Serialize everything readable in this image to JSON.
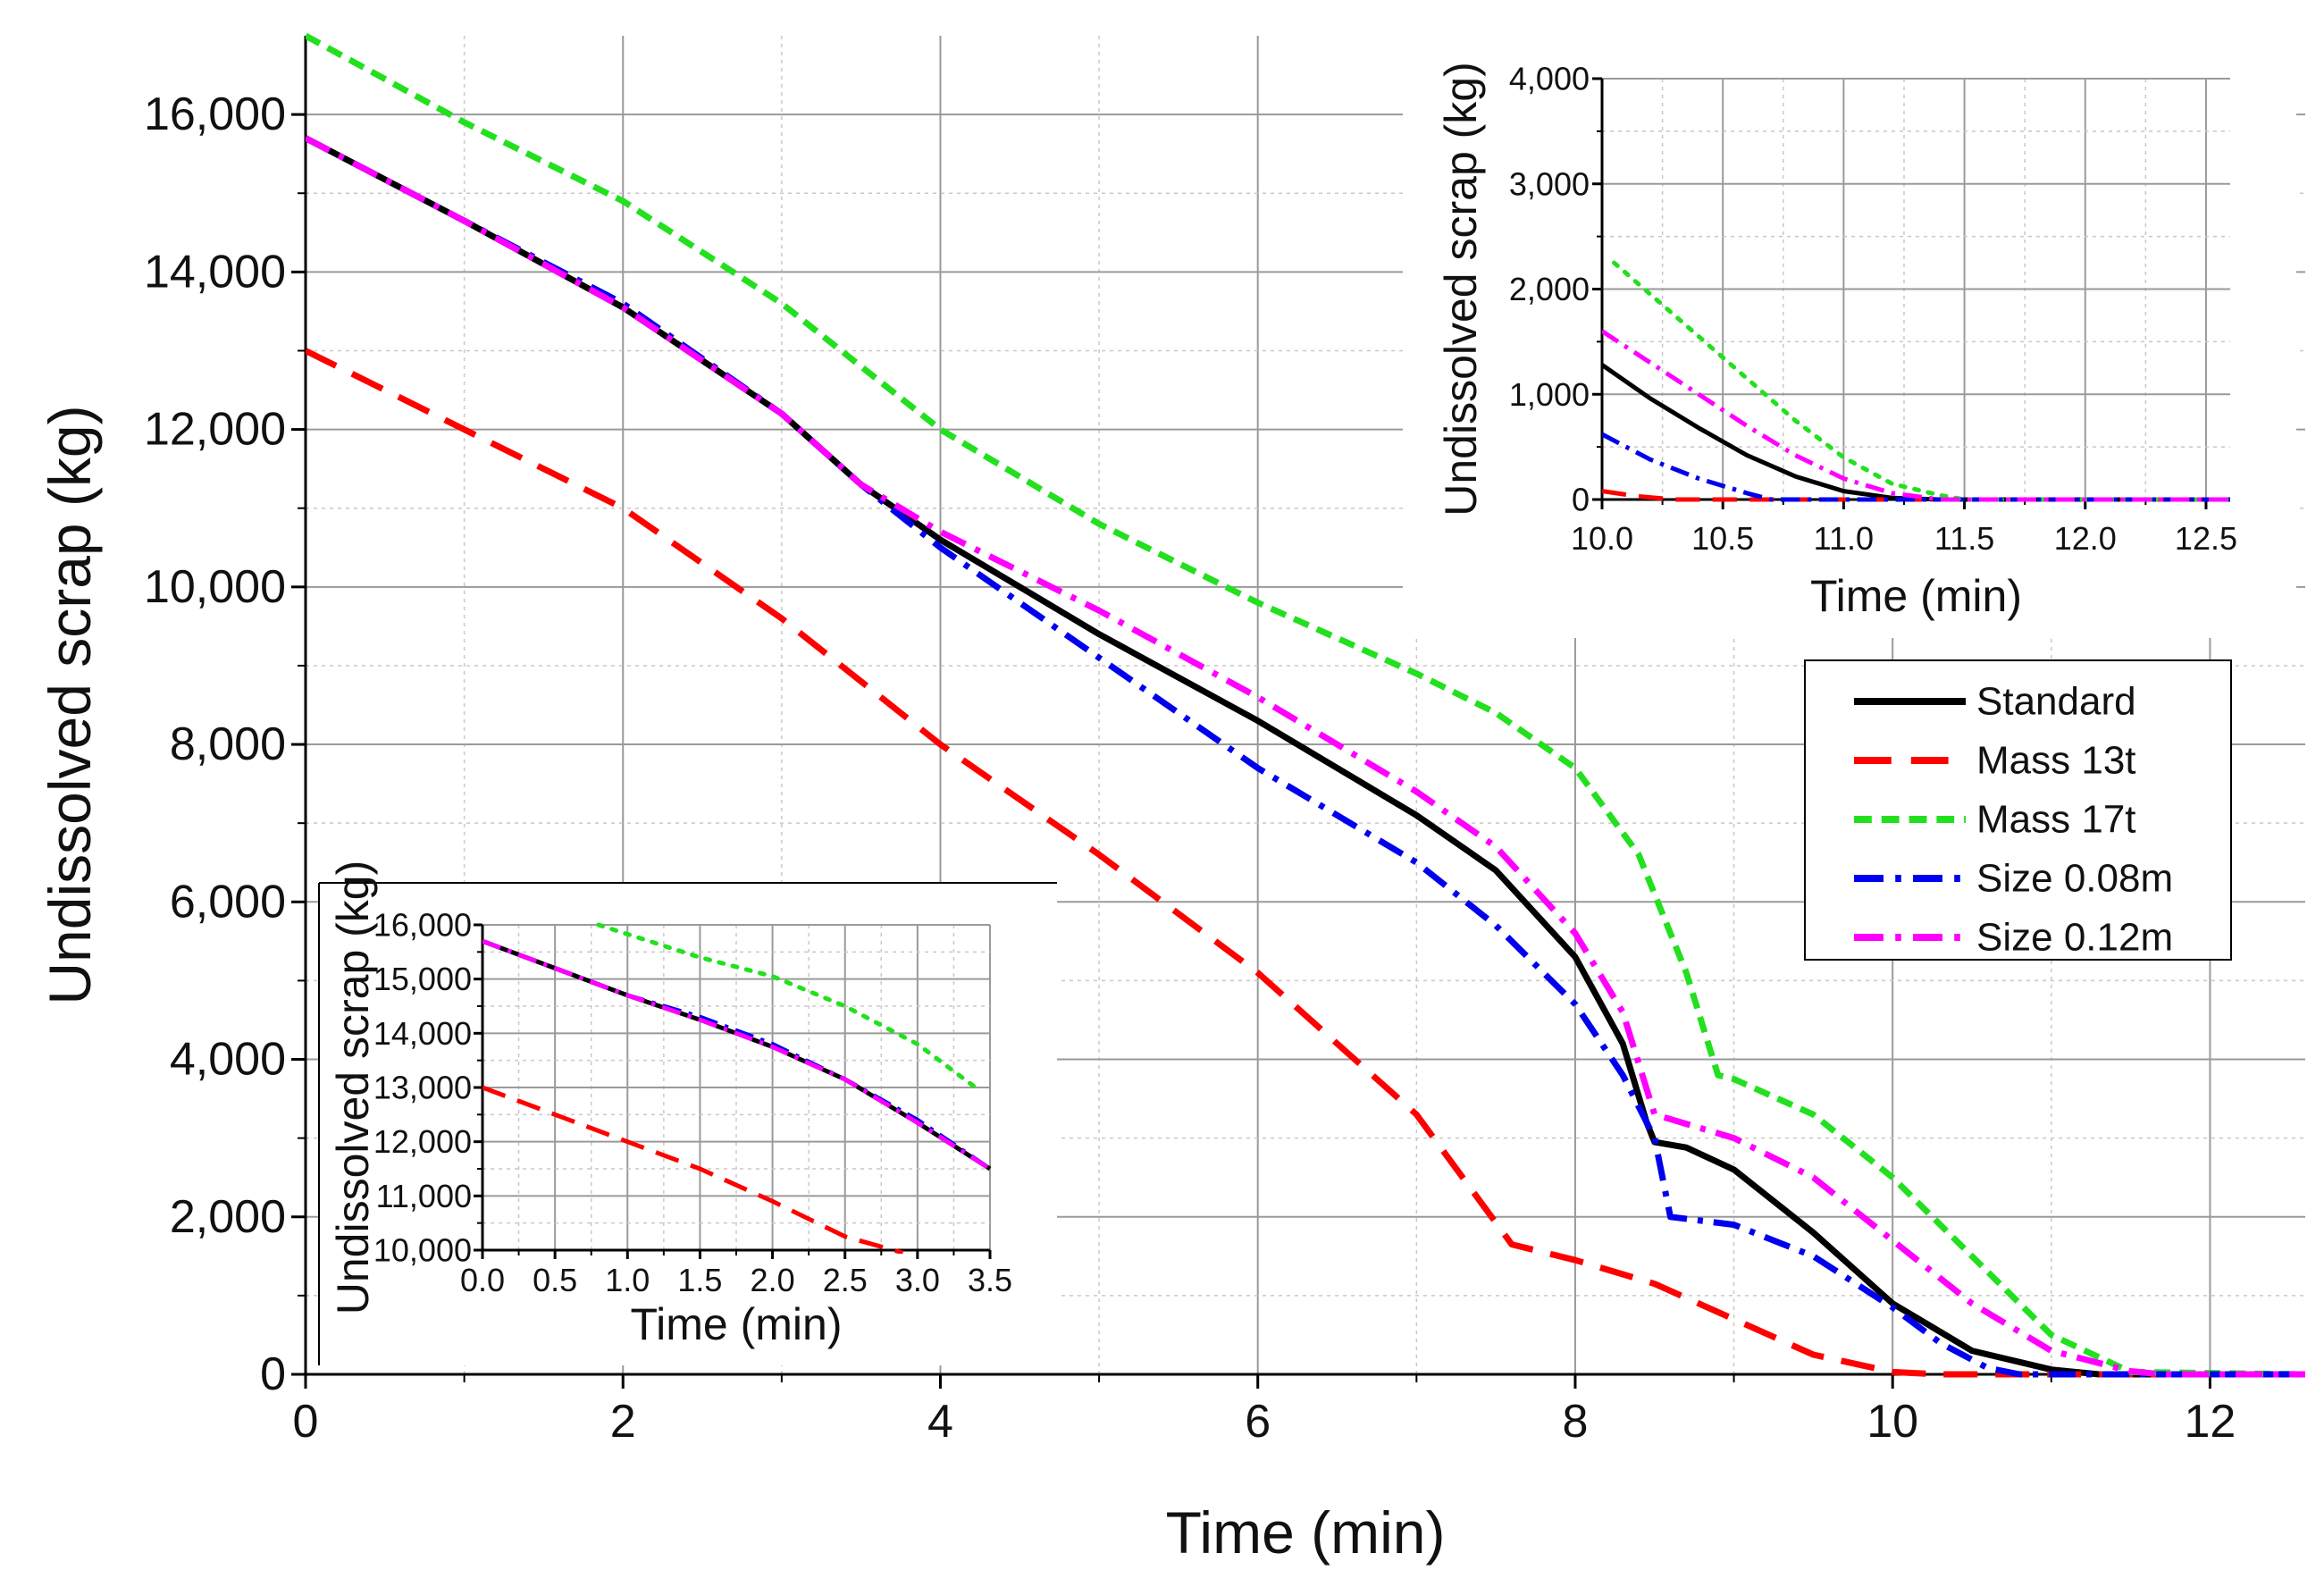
{
  "chart_data": [
    {
      "id": "main",
      "type": "line",
      "xlabel": "Time (min)",
      "ylabel": "Undissolved scrap (kg)",
      "xlim": [
        0,
        12.6
      ],
      "ylim": [
        0,
        17000
      ],
      "xticks": [
        0,
        2,
        4,
        6,
        8,
        10,
        12
      ],
      "xtick_labels": [
        "0",
        "2",
        "4",
        "6",
        "8",
        "10",
        "12"
      ],
      "yticks": [
        0,
        2000,
        4000,
        6000,
        8000,
        10000,
        12000,
        14000,
        16000
      ],
      "ytick_labels": [
        "0",
        "2,000",
        "4,000",
        "6,000",
        "8,000",
        "10,000",
        "12,000",
        "14,000",
        "16,000"
      ],
      "grid": true,
      "legend_position": "right",
      "series": [
        {
          "name": "Standard",
          "color": "#000000",
          "dash": "solid",
          "x": [
            0,
            1,
            2,
            3,
            3.5,
            4,
            5,
            6,
            7,
            7.5,
            8,
            8.3,
            8.45,
            8.5,
            8.7,
            9,
            9.5,
            10,
            10.5,
            11,
            11.3,
            12.6
          ],
          "y": [
            15700,
            14650,
            13550,
            12200,
            11300,
            10600,
            9400,
            8300,
            7100,
            6400,
            5300,
            4200,
            3200,
            2950,
            2880,
            2600,
            1800,
            900,
            300,
            60,
            0,
            0
          ]
        },
        {
          "name": "Mass 13t",
          "color": "#ff0000",
          "dash": "long-dash",
          "x": [
            0,
            1,
            2,
            3,
            4,
            5,
            6,
            7,
            7.6,
            8,
            8.5,
            9,
            9.5,
            10,
            10.3,
            12.6
          ],
          "y": [
            13000,
            12000,
            11000,
            9600,
            8000,
            6600,
            5100,
            3300,
            1650,
            1450,
            1150,
            700,
            250,
            30,
            0,
            0
          ]
        },
        {
          "name": "Mass 17t",
          "color": "#22e01e",
          "dash": "short-dash",
          "x": [
            0,
            1,
            2,
            3,
            4,
            5,
            6,
            7,
            7.5,
            8,
            8.4,
            8.7,
            8.9,
            9,
            9.5,
            10,
            10.5,
            11,
            11.5,
            12.6
          ],
          "y": [
            17000,
            15900,
            14900,
            13600,
            12000,
            10800,
            9800,
            8900,
            8400,
            7700,
            6600,
            5100,
            3800,
            3750,
            3300,
            2500,
            1500,
            500,
            30,
            0
          ]
        },
        {
          "name": "Size 0.08m",
          "color": "#0000ee",
          "dash": "dash-dot",
          "x": [
            0,
            1,
            2,
            3,
            3.5,
            4,
            5,
            6,
            7,
            7.5,
            8,
            8.3,
            8.5,
            8.6,
            9,
            9.5,
            10,
            10.3,
            10.6,
            10.8,
            12.6
          ],
          "y": [
            15700,
            14650,
            13600,
            12200,
            11300,
            10500,
            9100,
            7700,
            6500,
            5700,
            4700,
            3800,
            3000,
            2000,
            1900,
            1500,
            850,
            400,
            80,
            0,
            0
          ]
        },
        {
          "name": "Size 0.12m",
          "color": "#ff00ff",
          "dash": "dash-dot",
          "x": [
            0,
            1,
            2,
            3,
            3.5,
            4,
            5,
            6,
            7,
            7.5,
            8,
            8.3,
            8.5,
            9,
            9.5,
            10,
            10.5,
            11,
            11.5,
            11.7,
            12.6
          ],
          "y": [
            15700,
            14650,
            13550,
            12200,
            11300,
            10700,
            9700,
            8600,
            7400,
            6700,
            5600,
            4600,
            3300,
            3000,
            2500,
            1700,
            900,
            300,
            40,
            0,
            0
          ]
        }
      ]
    },
    {
      "id": "inset-top-right",
      "type": "line",
      "xlabel": "Time (min)",
      "ylabel": "Undissolved scrap (kg)",
      "xlim": [
        10.0,
        12.6
      ],
      "ylim": [
        0,
        4000
      ],
      "xticks": [
        10.0,
        10.5,
        11.0,
        11.5,
        12.0,
        12.5
      ],
      "xtick_labels": [
        "10.0",
        "10.5",
        "11.0",
        "11.5",
        "12.0",
        "12.5"
      ],
      "yticks": [
        0,
        1000,
        2000,
        3000,
        4000
      ],
      "ytick_labels": [
        "0",
        "1,000",
        "2,000",
        "3,000",
        "4,000"
      ],
      "grid": true,
      "series": [
        {
          "name": "Standard",
          "color": "#000000",
          "dash": "solid",
          "x": [
            10.0,
            10.2,
            10.4,
            10.6,
            10.8,
            11.0,
            11.2,
            11.4,
            12.6
          ],
          "y": [
            1280,
            960,
            680,
            420,
            220,
            80,
            15,
            0,
            0
          ]
        },
        {
          "name": "Mass 13t",
          "color": "#ff0000",
          "dash": "long-dash",
          "x": [
            10.0,
            10.15,
            10.3,
            12.6
          ],
          "y": [
            80,
            30,
            0,
            0
          ]
        },
        {
          "name": "Mass 17t",
          "color": "#22e01e",
          "dash": "dotted",
          "x": [
            10.05,
            10.2,
            10.4,
            10.6,
            10.8,
            11.0,
            11.2,
            11.4,
            11.5,
            12.6
          ],
          "y": [
            2250,
            1950,
            1550,
            1150,
            750,
            400,
            150,
            40,
            0,
            0
          ]
        },
        {
          "name": "Size 0.08m",
          "color": "#0000ee",
          "dash": "dash-dot",
          "x": [
            10.0,
            10.2,
            10.4,
            10.6,
            10.7,
            12.6
          ],
          "y": [
            620,
            380,
            200,
            60,
            0,
            0
          ]
        },
        {
          "name": "Size 0.12m",
          "color": "#ff00ff",
          "dash": "dash-dot",
          "x": [
            10.0,
            10.2,
            10.4,
            10.6,
            10.8,
            11.0,
            11.2,
            11.4,
            12.6
          ],
          "y": [
            1600,
            1300,
            1000,
            700,
            420,
            200,
            60,
            0,
            0
          ]
        }
      ]
    },
    {
      "id": "inset-bottom-left",
      "type": "line",
      "xlabel": "Time (min)",
      "ylabel": "Undissolved scrap (kg)",
      "xlim": [
        0,
        3.5
      ],
      "ylim": [
        10000,
        16000
      ],
      "xticks": [
        0.0,
        0.5,
        1.0,
        1.5,
        2.0,
        2.5,
        3.0,
        3.5
      ],
      "xtick_labels": [
        "0.0",
        "0.5",
        "1.0",
        "1.5",
        "2.0",
        "2.5",
        "3.0",
        "3.5"
      ],
      "yticks": [
        10000,
        11000,
        12000,
        13000,
        14000,
        15000,
        16000
      ],
      "ytick_labels": [
        "10,000",
        "11,000",
        "12,000",
        "13,000",
        "14,000",
        "15,000",
        "16,000"
      ],
      "grid": true,
      "series": [
        {
          "name": "Standard",
          "color": "#000000",
          "dash": "solid",
          "x": [
            0,
            0.5,
            1.0,
            1.5,
            2.0,
            2.5,
            3.0,
            3.5
          ],
          "y": [
            15700,
            15200,
            14700,
            14250,
            13750,
            13150,
            12350,
            11500
          ]
        },
        {
          "name": "Mass 13t",
          "color": "#ff0000",
          "dash": "long-dash",
          "x": [
            0,
            0.5,
            1.0,
            1.5,
            2.0,
            2.5,
            2.9
          ],
          "y": [
            13000,
            12500,
            12000,
            11500,
            10900,
            10250,
            9950
          ]
        },
        {
          "name": "Mass 17t",
          "color": "#22e01e",
          "dash": "dotted",
          "x": [
            0.8,
            1.5,
            2.0,
            2.5,
            3.0,
            3.4
          ],
          "y": [
            16000,
            15400,
            15050,
            14500,
            13800,
            13000
          ]
        },
        {
          "name": "Size 0.08m",
          "color": "#0000ee",
          "dash": "dash-dot",
          "x": [
            0,
            0.5,
            1.0,
            1.5,
            2.0,
            2.5,
            3.0,
            3.5
          ],
          "y": [
            15700,
            15200,
            14700,
            14300,
            13800,
            13150,
            12400,
            11500
          ]
        },
        {
          "name": "Size 0.12m",
          "color": "#ff00ff",
          "dash": "dash-dot",
          "x": [
            0,
            0.5,
            1.0,
            1.5,
            2.0,
            2.5,
            3.0,
            3.5
          ],
          "y": [
            15700,
            15200,
            14700,
            14250,
            13750,
            13150,
            12350,
            11500
          ]
        }
      ]
    }
  ]
}
